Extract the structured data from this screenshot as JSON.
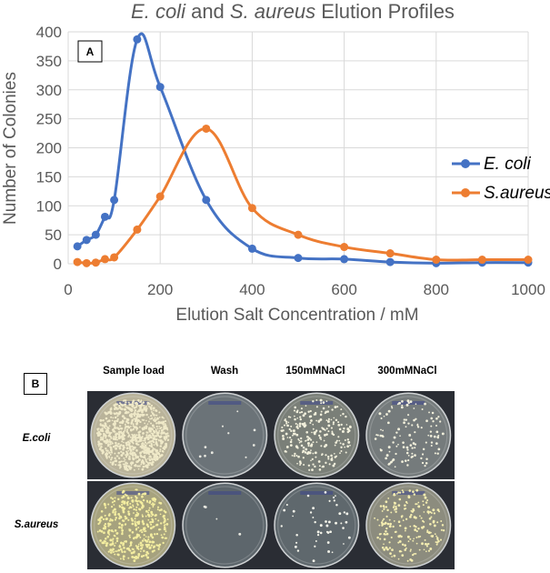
{
  "chart_data": {
    "type": "line",
    "title_italic_1": "E. coli",
    "title_mid": " and ",
    "title_italic_2": "S. aureus",
    "title_end": " Elution Profiles",
    "panel_label": "A",
    "xlabel": "Elution Salt Concentration / mM",
    "ylabel": "Number of Colonies",
    "xlim": [
      0,
      1000
    ],
    "ylim": [
      0,
      400
    ],
    "xticks": [
      0,
      200,
      400,
      600,
      800,
      1000
    ],
    "yticks": [
      0,
      50,
      100,
      150,
      200,
      250,
      300,
      350,
      400
    ],
    "grid": true,
    "legend_position": "right",
    "smooth": true,
    "series": [
      {
        "name": "E. coli",
        "color": "#4472C4",
        "x": [
          20,
          40,
          60,
          80,
          100,
          150,
          200,
          300,
          400,
          500,
          600,
          700,
          800,
          900,
          1000
        ],
        "y": [
          30,
          41,
          50,
          81,
          110,
          387,
          305,
          110,
          26,
          10,
          8,
          3,
          1,
          2,
          2
        ]
      },
      {
        "name": "S.aureus",
        "color": "#ED7D31",
        "x": [
          20,
          40,
          60,
          80,
          100,
          150,
          200,
          300,
          400,
          500,
          600,
          700,
          800,
          900,
          1000
        ],
        "y": [
          3,
          1,
          2,
          8,
          11,
          59,
          116,
          233,
          96,
          50,
          29,
          18,
          7,
          7,
          7
        ]
      }
    ]
  },
  "panel_b": {
    "label": "B",
    "columns": [
      "Sample load",
      "Wash",
      "150mMNaCl",
      "300mMNaCl"
    ],
    "rows": [
      "E.coli",
      "S.aureus"
    ]
  }
}
